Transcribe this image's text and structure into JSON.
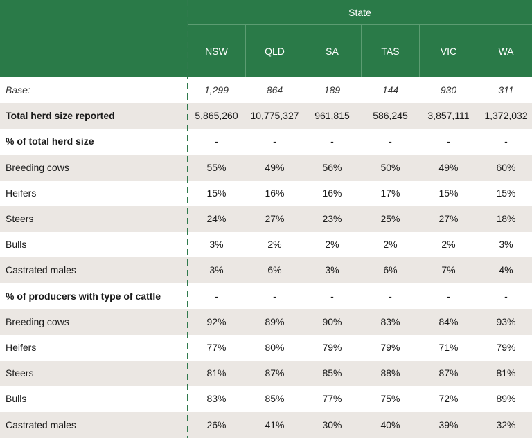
{
  "header": {
    "group_label": "State",
    "columns": [
      "NSW",
      "QLD",
      "SA",
      "TAS",
      "VIC",
      "WA"
    ]
  },
  "rows": [
    {
      "label": "Base:",
      "values": [
        "1,299",
        "864",
        "189",
        "144",
        "930",
        "311"
      ],
      "style": "italic"
    },
    {
      "label": "Total herd size reported",
      "values": [
        "5,865,260",
        "10,775,327",
        "961,815",
        "586,245",
        "3,857,111",
        "1,372,032"
      ],
      "style": "bold"
    },
    {
      "label": "% of total herd size",
      "values": [
        "-",
        "-",
        "-",
        "-",
        "-",
        "-"
      ],
      "style": "bold-label"
    },
    {
      "label": "Breeding cows",
      "values": [
        "55%",
        "49%",
        "56%",
        "50%",
        "49%",
        "60%"
      ],
      "style": "normal"
    },
    {
      "label": "Heifers",
      "values": [
        "15%",
        "16%",
        "16%",
        "17%",
        "15%",
        "15%"
      ],
      "style": "normal"
    },
    {
      "label": "Steers",
      "values": [
        "24%",
        "27%",
        "23%",
        "25%",
        "27%",
        "18%"
      ],
      "style": "normal"
    },
    {
      "label": "Bulls",
      "values": [
        "3%",
        "2%",
        "2%",
        "2%",
        "2%",
        "3%"
      ],
      "style": "normal"
    },
    {
      "label": "Castrated males",
      "values": [
        "3%",
        "6%",
        "3%",
        "6%",
        "7%",
        "4%"
      ],
      "style": "normal"
    },
    {
      "label": "% of producers with type of cattle",
      "values": [
        "-",
        "-",
        "-",
        "-",
        "-",
        "-"
      ],
      "style": "bold-label"
    },
    {
      "label": "Breeding cows",
      "values": [
        "92%",
        "89%",
        "90%",
        "83%",
        "84%",
        "93%"
      ],
      "style": "normal"
    },
    {
      "label": "Heifers",
      "values": [
        "77%",
        "80%",
        "79%",
        "79%",
        "71%",
        "79%"
      ],
      "style": "normal"
    },
    {
      "label": "Steers",
      "values": [
        "81%",
        "87%",
        "85%",
        "88%",
        "87%",
        "81%"
      ],
      "style": "normal"
    },
    {
      "label": "Bulls",
      "values": [
        "83%",
        "85%",
        "77%",
        "75%",
        "72%",
        "89%"
      ],
      "style": "normal"
    },
    {
      "label": "Castrated males",
      "values": [
        "26%",
        "41%",
        "30%",
        "40%",
        "39%",
        "32%"
      ],
      "style": "normal"
    }
  ],
  "colors": {
    "header_green": "#2a7a48",
    "row_shade": "#ebe7e3",
    "divider_green": "#2f7a4c"
  }
}
